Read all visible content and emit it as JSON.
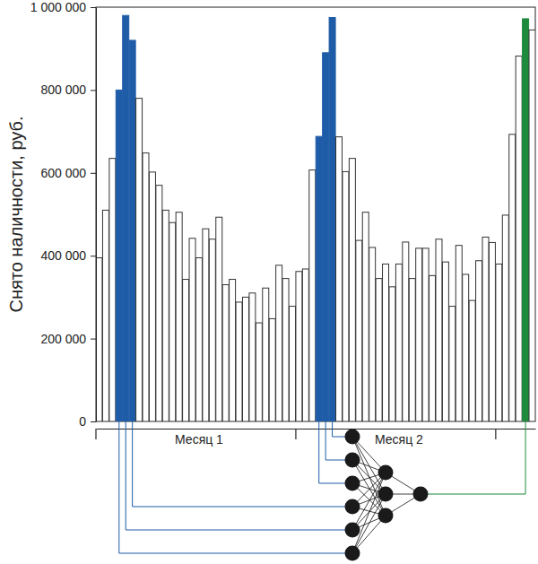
{
  "chart_data": {
    "type": "bar",
    "y_label": "Снято наличности, руб.",
    "categories": [
      null,
      null,
      null,
      null,
      null,
      null,
      null,
      null,
      null,
      null,
      null,
      null,
      null,
      null,
      null,
      "Месяц 1",
      null,
      null,
      null,
      null,
      null,
      null,
      null,
      null,
      null,
      null,
      null,
      null,
      null,
      null,
      null,
      null,
      null,
      null,
      null,
      null,
      null,
      null,
      null,
      null,
      null,
      null,
      null,
      null,
      null,
      "Месяц 2",
      null,
      null,
      null,
      null,
      null,
      null,
      null,
      null,
      null,
      null,
      null,
      null,
      null,
      null,
      null,
      null,
      null,
      null,
      null,
      null
    ],
    "values": [
      395000,
      510000,
      635000,
      800000,
      980000,
      920000,
      780000,
      648000,
      602000,
      570000,
      510000,
      480000,
      505000,
      343000,
      442000,
      395000,
      465000,
      440000,
      493000,
      330000,
      343000,
      288000,
      300000,
      310000,
      238000,
      322000,
      248000,
      377000,
      345000,
      278000,
      362000,
      368000,
      607000,
      688000,
      890000,
      975000,
      687000,
      603000,
      635000,
      437000,
      505000,
      420000,
      345000,
      380000,
      325000,
      380000,
      433000,
      345000,
      418000,
      418000,
      352000,
      440000,
      385000,
      278000,
      425000,
      355000,
      292000,
      388000,
      445000,
      432000,
      380000,
      498000,
      693000,
      882000,
      972000,
      945000
    ],
    "colors": [
      "#ffffff",
      "#ffffff",
      "#ffffff",
      "#1f5ca8",
      "#1f5ca8",
      "#1f5ca8",
      "#ffffff",
      "#ffffff",
      "#ffffff",
      "#ffffff",
      "#ffffff",
      "#ffffff",
      "#ffffff",
      "#ffffff",
      "#ffffff",
      "#ffffff",
      "#ffffff",
      "#ffffff",
      "#ffffff",
      "#ffffff",
      "#ffffff",
      "#ffffff",
      "#ffffff",
      "#ffffff",
      "#ffffff",
      "#ffffff",
      "#ffffff",
      "#ffffff",
      "#ffffff",
      "#ffffff",
      "#ffffff",
      "#ffffff",
      "#ffffff",
      "#1f5ca8",
      "#1f5ca8",
      "#1f5ca8",
      "#ffffff",
      "#ffffff",
      "#ffffff",
      "#ffffff",
      "#ffffff",
      "#ffffff",
      "#ffffff",
      "#ffffff",
      "#ffffff",
      "#ffffff",
      "#ffffff",
      "#ffffff",
      "#ffffff",
      "#ffffff",
      "#ffffff",
      "#ffffff",
      "#ffffff",
      "#ffffff",
      "#ffffff",
      "#ffffff",
      "#ffffff",
      "#ffffff",
      "#ffffff",
      "#ffffff",
      "#ffffff",
      "#ffffff",
      "#ffffff",
      "#ffffff",
      "#1e8a3c",
      "#ffffff"
    ],
    "ylim": [
      0,
      1000000
    ],
    "yticks": [
      0,
      {
        "value": 200000,
        "label": "200 000"
      },
      {
        "value": 400000,
        "label": "400 000"
      },
      {
        "value": 600000,
        "label": "600 000"
      },
      {
        "value": 800000,
        "label": "800 000"
      },
      {
        "value": 1000000,
        "label": "1 000 000"
      }
    ]
  }
}
